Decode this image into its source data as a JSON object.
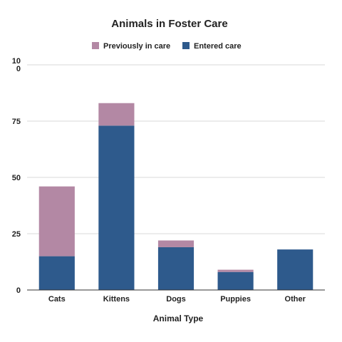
{
  "chart_data": {
    "type": "bar",
    "stacked": true,
    "title": "Animals in Foster Care",
    "xlabel": "Animal Type",
    "ylabel": "",
    "categories": [
      "Cats",
      "Kittens",
      "Dogs",
      "Puppies",
      "Other"
    ],
    "series": [
      {
        "name": "Entered care",
        "values": [
          15,
          73,
          19,
          8,
          18
        ],
        "color": "#2e5a8c"
      },
      {
        "name": "Previously in care",
        "values": [
          31,
          10,
          3,
          1,
          0
        ],
        "color": "#b388a4"
      }
    ],
    "legend_order": [
      "Previously in care",
      "Entered care"
    ],
    "legend_position": "top",
    "yticks": [
      "0",
      "25",
      "50",
      "75",
      "100"
    ],
    "ylim": [
      0,
      100
    ],
    "grid": true
  }
}
